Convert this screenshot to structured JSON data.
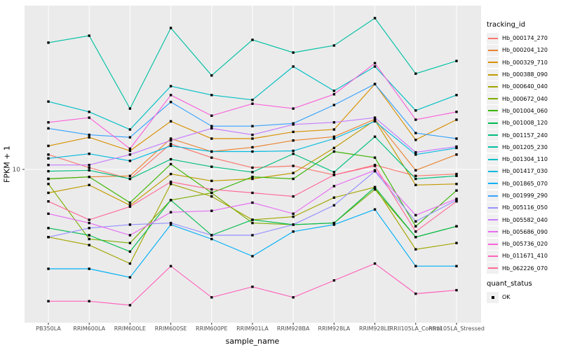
{
  "chart_data": {
    "type": "line",
    "title": "",
    "xlabel": "sample_name",
    "ylabel": "FPKM + 1",
    "y_scale": "log10",
    "y_ticks": [
      {
        "value": 10,
        "label": "10"
      }
    ],
    "grid": "major-only",
    "legend_position": "right",
    "legend": {
      "tracking_title": "tracking_id",
      "quant_title": "quant_status",
      "quant_items": [
        {
          "label": "OK",
          "marker": "black-square"
        }
      ]
    },
    "point_marker": "black-square",
    "categories": [
      "PB350LA",
      "RRIM600LA",
      "RRIM600LE",
      "RRIM600SE",
      "RRIM600PE",
      "RRIM901LA",
      "RRIM928BA",
      "RRIM928LA",
      "RRIM928LE",
      "RRII105LA_Control",
      "RRII105LA_Stressed"
    ],
    "series": [
      {
        "name": "Hb_000174_270",
        "color": "#F8766D",
        "values": [
          11.8,
          10.2,
          9.0,
          13.3,
          11.4,
          10.2,
          10.4,
          9.4,
          10.5,
          9.3,
          9.5
        ]
      },
      {
        "name": "Hb_000204_120",
        "color": "#EA8331",
        "values": [
          9.0,
          9.2,
          9.3,
          14.1,
          12.2,
          12.8,
          13.8,
          14.4,
          17.5,
          9.9,
          11.8
        ]
      },
      {
        "name": "Hb_000329_710",
        "color": "#D89000",
        "values": [
          13.0,
          14.3,
          12.3,
          17.1,
          14.1,
          14.1,
          15.2,
          15.6,
          25.9,
          13.9,
          17.4
        ]
      },
      {
        "name": "Hb_000388_090",
        "color": "#C09B00",
        "values": [
          7.7,
          8.4,
          6.7,
          9.5,
          8.8,
          9.0,
          9.6,
          12.7,
          17.3,
          8.4,
          8.5
        ]
      },
      {
        "name": "Hb_000640_040",
        "color": "#A3A500",
        "values": [
          4.7,
          4.3,
          3.5,
          8.5,
          7.4,
          5.7,
          5.9,
          7.3,
          8.2,
          4.1,
          4.4
        ]
      },
      {
        "name": "Hb_000672_040",
        "color": "#7CAE00",
        "values": [
          8.5,
          4.6,
          4.4,
          7.1,
          7.7,
          5.5,
          5.4,
          5.5,
          8.0,
          4.7,
          5.3
        ]
      },
      {
        "name": "Hb_001004_060",
        "color": "#39B600",
        "values": [
          9.0,
          9.2,
          6.9,
          10.6,
          7.7,
          9.2,
          9.0,
          12.2,
          11.4,
          5.3,
          7.9
        ]
      },
      {
        "name": "Hb_001008_120",
        "color": "#00BB4E",
        "values": [
          5.2,
          4.8,
          4.0,
          7.1,
          4.8,
          5.7,
          5.4,
          5.5,
          8.2,
          4.7,
          5.3
        ]
      },
      {
        "name": "Hb_001157_240",
        "color": "#00BF7D",
        "values": [
          9.8,
          9.9,
          9.0,
          11.2,
          10.3,
          9.7,
          11.9,
          9.7,
          14.4,
          9.0,
          9.3
        ]
      },
      {
        "name": "Hb_001205_230",
        "color": "#00C1A3",
        "values": [
          41.1,
          44.4,
          19.7,
          48.4,
          28.5,
          42.4,
          36.8,
          39.8,
          54.0,
          29.1,
          33.5
        ]
      },
      {
        "name": "Hb_001304_110",
        "color": "#00BFC4",
        "values": [
          21.3,
          19.0,
          15.6,
          25.3,
          22.9,
          21.7,
          31.5,
          24.0,
          31.5,
          19.3,
          22.9
        ]
      },
      {
        "name": "Hb_001417_030",
        "color": "#00BAE0",
        "values": [
          11.3,
          11.9,
          11.0,
          13.0,
          12.2,
          12.2,
          12.3,
          14.1,
          17.1,
          11.8,
          12.7
        ]
      },
      {
        "name": "Hb_001865_070",
        "color": "#00B0F6",
        "values": [
          3.3,
          3.3,
          3.0,
          5.4,
          4.6,
          3.8,
          5.0,
          5.4,
          6.4,
          3.4,
          3.4
        ]
      },
      {
        "name": "Hb_001999_290",
        "color": "#35A2FF",
        "values": [
          15.8,
          14.7,
          14.3,
          21.2,
          16.2,
          16.2,
          16.7,
          20.5,
          25.9,
          15.0,
          14.1
        ]
      },
      {
        "name": "Hb_005116_050",
        "color": "#9590FF",
        "values": [
          4.7,
          5.2,
          5.4,
          5.5,
          4.8,
          4.8,
          5.4,
          6.7,
          9.8,
          5.6,
          7.1
        ]
      },
      {
        "name": "Hb_005582_040",
        "color": "#C77CFF",
        "values": [
          10.5,
          10.5,
          11.8,
          13.8,
          15.8,
          14.7,
          16.5,
          16.9,
          17.8,
          12.1,
          12.9
        ]
      },
      {
        "name": "Hb_005686_090",
        "color": "#E76BF3",
        "values": [
          6.1,
          5.5,
          4.8,
          6.2,
          6.3,
          6.9,
          6.1,
          8.3,
          9.9,
          6.0,
          7.2
        ]
      },
      {
        "name": "Hb_005736_020",
        "color": "#FA62DB",
        "values": [
          16.9,
          17.8,
          12.6,
          22.9,
          18.2,
          20.8,
          19.7,
          23.1,
          32.7,
          17.4,
          19.0
        ]
      },
      {
        "name": "Hb_011671_410",
        "color": "#FF62BC",
        "values": [
          2.3,
          2.3,
          2.2,
          3.4,
          2.4,
          2.7,
          2.4,
          2.9,
          3.5,
          2.5,
          2.6
        ]
      },
      {
        "name": "Hb_062226_070",
        "color": "#FF6A98",
        "values": [
          7.0,
          5.7,
          6.6,
          8.7,
          8.0,
          7.7,
          7.4,
          9.4,
          10.4,
          5.0,
          7.0
        ]
      }
    ],
    "colors": {
      "panel_bg": "#EBEBEB",
      "grid_line": "#FFFFFF",
      "axis_text": "#4D4D4D",
      "axis_title": "#000000",
      "point": "#000000",
      "legend_key_bg": "#F0F0F0"
    }
  }
}
